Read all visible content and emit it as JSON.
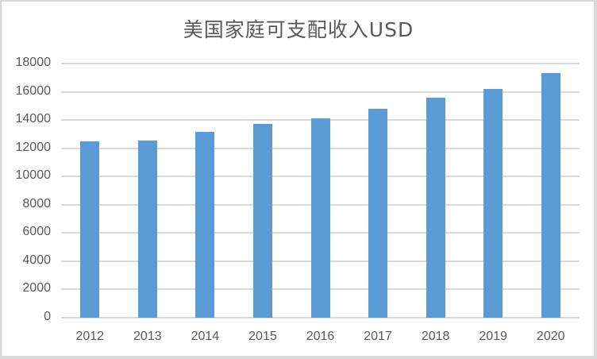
{
  "chart_data": {
    "type": "bar",
    "title": "美国家庭可支配收入USD",
    "xlabel": "",
    "ylabel": "",
    "categories": [
      "2012",
      "2013",
      "2014",
      "2015",
      "2016",
      "2017",
      "2018",
      "2019",
      "2020"
    ],
    "values": [
      12500,
      12540,
      13160,
      13720,
      14120,
      14790,
      15580,
      16200,
      17320
    ],
    "ylim": [
      0,
      18000
    ],
    "yticks": [
      "0",
      "2000",
      "4000",
      "6000",
      "8000",
      "10000",
      "12000",
      "14000",
      "16000",
      "18000"
    ],
    "grid": true,
    "legend": null,
    "bar_color": "#5b9bd5"
  }
}
